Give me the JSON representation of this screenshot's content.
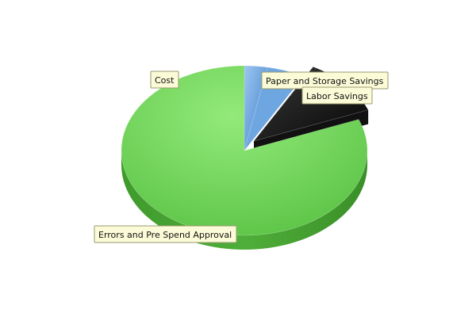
{
  "chart_data": {
    "type": "pie",
    "three_d": true,
    "title": "",
    "legend": "none",
    "unit": "%",
    "slices": [
      {
        "label": "Cost",
        "value": 3
      },
      {
        "label": "Paper and Storage Savings",
        "value": 5
      },
      {
        "label": "Labor Savings",
        "value": 11
      },
      {
        "label": "Errors and Pre Spend Approval",
        "value": 81
      }
    ]
  },
  "colors": {
    "cost": "#4f8fd6",
    "paper": "#7aaee6",
    "labor": "#1a1a1a",
    "errors": "#6ecf5a",
    "label_bg": "#fbfbd8",
    "label_border": "#9a9a70"
  }
}
